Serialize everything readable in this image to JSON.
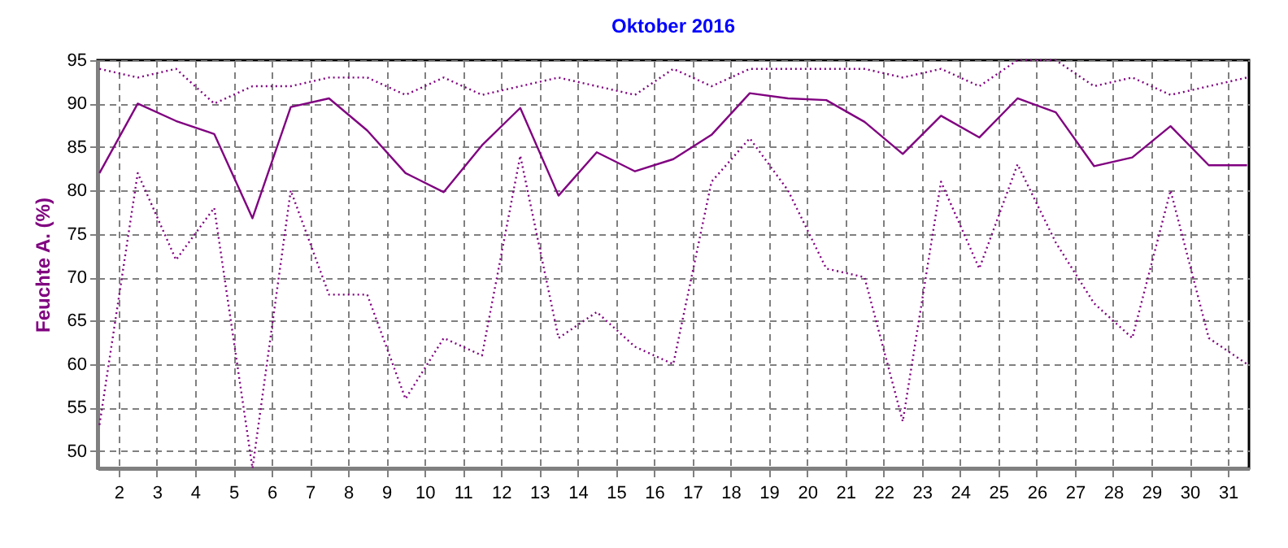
{
  "chart_data": {
    "type": "line",
    "title": "Oktober 2016",
    "ylabel": "Feuchte A. (%)",
    "x": [
      1.5,
      2.5,
      3.5,
      4.5,
      5.5,
      6.5,
      7.5,
      8.5,
      9.5,
      10.5,
      11.5,
      12.5,
      13.5,
      14.5,
      15.5,
      16.5,
      17.5,
      18.5,
      19.5,
      20.5,
      21.5,
      22.5,
      23.5,
      24.5,
      25.5,
      26.5,
      27.5,
      28.5,
      29.5,
      30.5,
      31.5
    ],
    "series": [
      {
        "color": "#800080",
        "line_style": "dotted",
        "values": [
          94,
          93,
          94,
          90,
          92,
          92,
          93,
          93,
          91,
          93,
          91,
          92,
          93,
          92,
          91,
          94,
          92,
          94,
          94,
          94,
          94,
          93,
          94,
          92,
          95,
          95,
          92,
          93,
          91,
          92,
          93
        ]
      },
      {
        "color": "#800080",
        "line_style": "solid",
        "values": [
          82,
          90,
          88,
          86.5,
          76.8,
          89.6,
          90.6,
          86.9,
          82,
          79.8,
          85.2,
          89.5,
          79.4,
          84.4,
          82.2,
          83.6,
          86.4,
          91.2,
          90.6,
          90.4,
          87.9,
          84.2,
          88.6,
          86.1,
          90.6,
          89,
          82.8,
          83.8,
          87.4,
          82.9,
          82.9
        ]
      },
      {
        "color": "#800080",
        "line_style": "dotted",
        "values": [
          53,
          82,
          72,
          78,
          48,
          80,
          68,
          68,
          56,
          63,
          61,
          84,
          63,
          66,
          62,
          60,
          81,
          86,
          80,
          71,
          70,
          53.4,
          81,
          71,
          83,
          74,
          67,
          63,
          80,
          63,
          60
        ]
      }
    ],
    "xlim": [
      1.45,
      31.55
    ],
    "xticks": [
      2,
      3,
      4,
      5,
      6,
      7,
      8,
      9,
      10,
      11,
      12,
      13,
      14,
      15,
      16,
      17,
      18,
      19,
      20,
      21,
      22,
      23,
      24,
      25,
      26,
      27,
      28,
      29,
      30,
      31
    ],
    "ylim": [
      48,
      95
    ],
    "yticks": [
      50,
      55,
      60,
      65,
      70,
      75,
      80,
      85,
      90,
      95
    ],
    "grid": true,
    "marker": "none"
  }
}
